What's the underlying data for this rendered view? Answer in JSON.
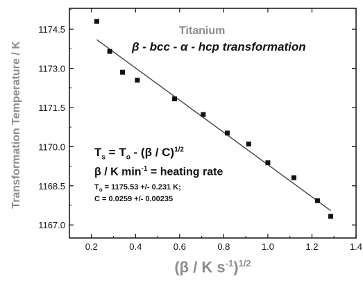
{
  "chart_data": {
    "type": "scatter",
    "title": "Titanium",
    "subtitle": "β - bcc - α - hcp  transformation",
    "xlabel": "(β / K s-1)1/2",
    "ylabel": "Transformation Temperature / K",
    "xlim": [
      0.1,
      1.4
    ],
    "ylim": [
      1166.5,
      1175.3
    ],
    "xticks": [
      "0.2",
      "0.4",
      "0.6",
      "0.8",
      "1.0",
      "1.2",
      "1.4"
    ],
    "yticks": [
      "1167.0",
      "1168.5",
      "1170.0",
      "1171.5",
      "1173.0",
      "1174.5"
    ],
    "xtick_values": [
      0.2,
      0.4,
      0.6,
      0.8,
      1.0,
      1.2,
      1.4
    ],
    "ytick_values": [
      1167.0,
      1168.5,
      1170.0,
      1171.5,
      1173.0,
      1174.5
    ],
    "x": [
      0.224,
      0.283,
      0.341,
      0.408,
      0.577,
      0.707,
      0.816,
      0.913,
      1.0,
      1.118,
      1.225,
      1.285
    ],
    "y": [
      1174.8,
      1173.65,
      1172.85,
      1172.55,
      1171.83,
      1171.23,
      1170.52,
      1170.1,
      1169.38,
      1168.81,
      1167.93,
      1167.33
    ],
    "fit_line": {
      "x": [
        0.224,
        1.285
      ],
      "y": [
        1174.1,
        1167.55
      ]
    },
    "annotations": {
      "eq1_prefix": "T",
      "eq1_sub_s": "s",
      "eq1_mid": " = T",
      "eq1_sub_o": "o",
      "eq1_rest": " - (β / C)",
      "eq1_sup": "1/2",
      "eq2_prefix": "β / K min",
      "eq2_sup": "-1",
      "eq2_rest": " = heating  rate",
      "fit1_prefix": "T",
      "fit1_sub": "o",
      "fit1_rest": " = 1175.53 +/- 0.231 K;",
      "fit2": "C = 0.0259 +/- 0.00235"
    },
    "xlabel_parts": {
      "base": "(β / K s",
      "sup1": "-1",
      "close": ")",
      "sup2": "1/2"
    },
    "colors": {
      "axis": "#111111",
      "label": "#8c8c8c",
      "points": "#111111",
      "fit": "#444444"
    },
    "grid": false,
    "legend": "none"
  }
}
